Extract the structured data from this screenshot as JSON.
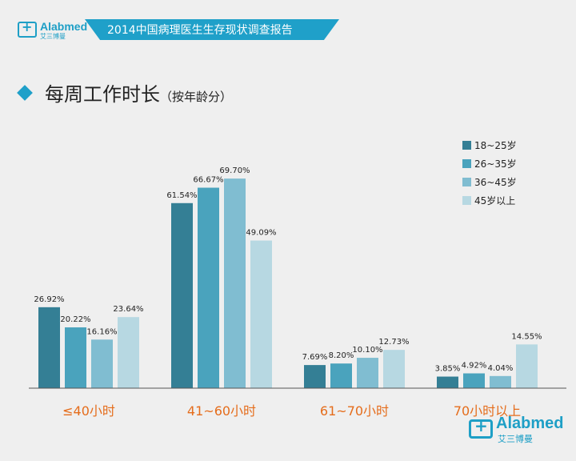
{
  "header": {
    "logo_text": "Alabmed",
    "logo_sub": "艾三博曼",
    "banner": "2014中国病理医生生存现状调查报告"
  },
  "page": {
    "title": "每周工作时长",
    "subtitle": "（按年龄分）"
  },
  "colors": [
    "#347f95",
    "#4aa3bd",
    "#80bdd1",
    "#b7d8e2"
  ],
  "category_color": "#e56d1c",
  "footer_logo": {
    "text": "Alabmed",
    "sub": "艾三博曼"
  },
  "chart_data": {
    "type": "bar",
    "categories": [
      "≤40小时",
      "41~60小时",
      "61~70小时",
      "70小时以上"
    ],
    "series": [
      {
        "name": "18~25岁",
        "values": [
          26.92,
          61.54,
          7.69,
          3.85
        ],
        "labels": [
          "26.92%",
          "61.54%",
          "7.69%",
          "3.85%"
        ]
      },
      {
        "name": "26~35岁",
        "values": [
          20.22,
          66.67,
          8.2,
          4.92
        ],
        "labels": [
          "20.22%",
          "66.67%",
          "8.20%",
          "4.92%"
        ]
      },
      {
        "name": "36~45岁",
        "values": [
          16.16,
          69.7,
          10.1,
          4.04
        ],
        "labels": [
          "16.16%",
          "69.70%",
          "10.10%",
          "4.04%"
        ]
      },
      {
        "name": "45岁以上",
        "values": [
          23.64,
          49.09,
          12.73,
          14.55
        ],
        "labels": [
          "23.64%",
          "49.09%",
          "12.73%",
          "14.55%"
        ]
      }
    ],
    "ylim": [
      0,
      70
    ],
    "legend_position": "top-right",
    "grid": false
  }
}
